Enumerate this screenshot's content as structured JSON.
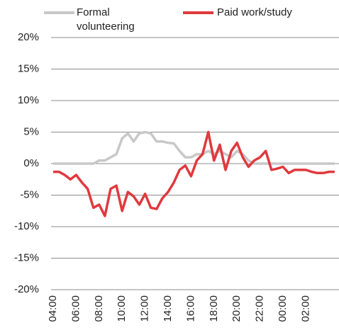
{
  "chart_data": {
    "type": "line",
    "categories": [
      "04:00",
      null,
      null,
      null,
      "06:00",
      null,
      null,
      null,
      "08:00",
      null,
      null,
      null,
      "10:00",
      null,
      null,
      null,
      "12:00",
      null,
      null,
      null,
      "14:00",
      null,
      null,
      null,
      "16:00",
      null,
      null,
      null,
      "18:00",
      null,
      null,
      null,
      "20:00",
      null,
      null,
      null,
      "22:00",
      null,
      null,
      null,
      "00:00",
      null,
      null,
      null,
      "02:00",
      null,
      null,
      null,
      null,
      null
    ],
    "series": [
      {
        "name": "Formal volunteering",
        "color": "#c8c8c8",
        "values": [
          0,
          0,
          0,
          0,
          0,
          0,
          0,
          0,
          0.5,
          0.5,
          1,
          1.5,
          4,
          4.8,
          3.5,
          4.8,
          5,
          4.8,
          3.5,
          3.5,
          3.3,
          3.2,
          2,
          1,
          1,
          1.5,
          1.5,
          2,
          1.5,
          2,
          1.5,
          1,
          2,
          1.5,
          0.5,
          0,
          0,
          0,
          0,
          0,
          0,
          0,
          0,
          0,
          0,
          0,
          0,
          0,
          0,
          0
        ]
      },
      {
        "name": "Paid work/study",
        "color": "#e0393e",
        "values": [
          -1.3,
          -1.3,
          -1.8,
          -2.5,
          -1.8,
          -3,
          -4,
          -7,
          -6.5,
          -8.3,
          -4,
          -3.5,
          -7.5,
          -4.5,
          -5.2,
          -6.5,
          -4.8,
          -7,
          -7.2,
          -5.5,
          -4.5,
          -3,
          -1,
          -0.3,
          -2,
          0.5,
          1.5,
          5,
          0.5,
          3,
          -1,
          2,
          3.3,
          1,
          -0.5,
          0.5,
          1,
          2,
          -1,
          -0.8,
          -0.5,
          -1.5,
          -1,
          -1,
          -1,
          -1.3,
          -1.5,
          -1.5,
          -1.3,
          -1.3
        ]
      }
    ],
    "ylim": [
      -20,
      20
    ],
    "yticks": [
      {
        "value": 20,
        "label": "20%"
      },
      {
        "value": 15,
        "label": "15%"
      },
      {
        "value": 10,
        "label": "10%"
      },
      {
        "value": 5,
        "label": "5%"
      },
      {
        "value": 0,
        "label": "0%"
      },
      {
        "value": -5,
        "label": "-5%"
      },
      {
        "value": -10,
        "label": "-10%"
      },
      {
        "value": -15,
        "label": "-15%"
      },
      {
        "value": -20,
        "label": "-20%"
      }
    ],
    "grid": true
  }
}
